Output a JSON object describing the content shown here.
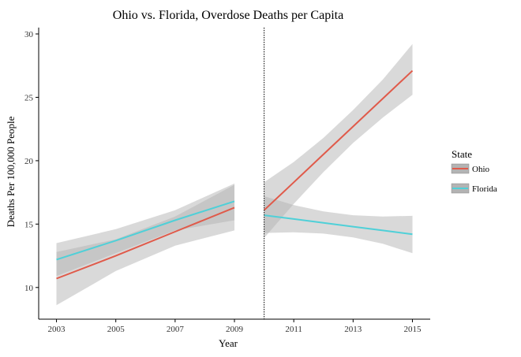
{
  "chart_data": {
    "type": "line",
    "title": "Ohio vs. Florida, Overdose Deaths per Capita",
    "xlabel": "Year",
    "ylabel": "Deaths Per 100,000 People",
    "xlim": [
      2002.4,
      2015.6
    ],
    "ylim": [
      7.5,
      30.5
    ],
    "x_ticks": [
      2003,
      2005,
      2007,
      2009,
      2011,
      2013,
      2015
    ],
    "y_ticks": [
      10,
      15,
      20,
      25,
      30
    ],
    "grid": false,
    "policy_line_x": 2010,
    "legend": {
      "title": "State",
      "position": "right"
    },
    "ribbon_color": "#b3b3b3",
    "series": [
      {
        "name": "Ohio",
        "color": "#e05a4a",
        "segments": [
          {
            "x": [
              2003,
              2005,
              2007,
              2009
            ],
            "y": [
              10.7,
              12.5,
              14.4,
              16.3
            ],
            "lower": [
              8.6,
              11.3,
              13.3,
              14.5
            ],
            "upper": [
              12.8,
              13.8,
              15.6,
              18.1
            ]
          },
          {
            "x": [
              2010,
              2011,
              2012,
              2013,
              2014,
              2015
            ],
            "y": [
              16.1,
              18.3,
              20.5,
              22.7,
              24.9,
              27.1
            ],
            "lower": [
              13.9,
              16.6,
              19.1,
              21.4,
              23.4,
              25.2
            ],
            "upper": [
              18.3,
              19.9,
              21.8,
              24.0,
              26.4,
              29.2
            ]
          }
        ]
      },
      {
        "name": "Florida",
        "color": "#4fd0d8",
        "segments": [
          {
            "x": [
              2003,
              2005,
              2007,
              2009
            ],
            "y": [
              12.2,
              13.7,
              15.3,
              16.8
            ],
            "lower": [
              10.9,
              12.7,
              14.5,
              15.3
            ],
            "upper": [
              13.5,
              14.6,
              16.1,
              18.2
            ]
          },
          {
            "x": [
              2010,
              2011,
              2012,
              2013,
              2014,
              2015
            ],
            "y": [
              15.7,
              15.4,
              15.1,
              14.8,
              14.5,
              14.2
            ],
            "lower": [
              14.3,
              14.35,
              14.25,
              13.95,
              13.45,
              12.7
            ],
            "upper": [
              17.2,
              16.5,
              16.0,
              15.7,
              15.6,
              15.65
            ]
          }
        ]
      }
    ]
  }
}
